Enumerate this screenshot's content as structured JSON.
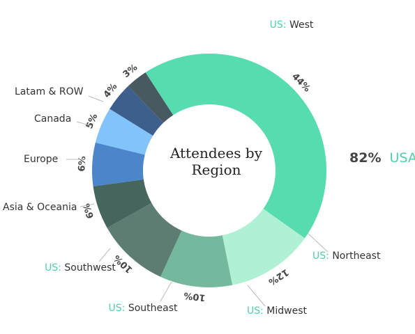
{
  "chart_data": {
    "type": "donut",
    "title": "Attendees by Region",
    "title_lines": [
      "Attendees by",
      "Region"
    ],
    "us_prefix": "US:",
    "summary": {
      "percent": "82%",
      "label": "USA"
    },
    "slices": [
      {
        "name": "West",
        "us": true,
        "value": 44,
        "label": "44%",
        "color": "#56dcaf"
      },
      {
        "name": "Northeast",
        "us": true,
        "value": 12,
        "label": "12%",
        "color": "#b0f0d4"
      },
      {
        "name": "Midwest",
        "us": true,
        "value": 10,
        "label": "10%",
        "color": "#74b89e"
      },
      {
        "name": "Southeast",
        "us": true,
        "value": 10,
        "label": "10%",
        "color": "#5e7d72"
      },
      {
        "name": "Southwest",
        "us": true,
        "value": 6,
        "label": "6%",
        "color": "#46655c"
      },
      {
        "name": "Asia & Oceania",
        "us": false,
        "value": 6,
        "label": "6%",
        "color": "#4a86c9"
      },
      {
        "name": "Europe",
        "us": false,
        "value": 5,
        "label": "5%",
        "color": "#82c3fa"
      },
      {
        "name": "Canada",
        "us": false,
        "value": 4,
        "label": "4%",
        "color": "#3e5f8c"
      },
      {
        "name": "Latam & ROW",
        "us": false,
        "value": 3,
        "label": "3%",
        "color": "#495960"
      }
    ],
    "colors": {
      "us_accent": "#4fd1a5",
      "text": "#333333",
      "leader": "#bbbbbb"
    }
  }
}
